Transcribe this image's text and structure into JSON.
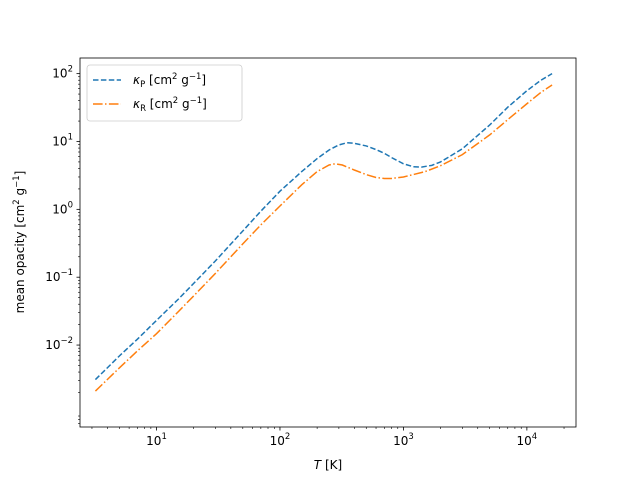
{
  "chart_data": {
    "type": "line",
    "title": "",
    "xlabel": {
      "italic": "T",
      "rest": " [K]"
    },
    "ylabel": {
      "main": "mean opacity [cm",
      "sup1": "2",
      "mid": " g",
      "sup2": "−1",
      "end": "]"
    },
    "xscale": "log",
    "yscale": "log",
    "xlim": [
      2.4,
      25000
    ],
    "ylim": [
      0.00062,
      170
    ],
    "grid": false,
    "legend_position": "top-left",
    "x_ticks": [
      {
        "value": 10,
        "base": "10",
        "exp": "1"
      },
      {
        "value": 100,
        "base": "10",
        "exp": "2"
      },
      {
        "value": 1000,
        "base": "10",
        "exp": "3"
      },
      {
        "value": 10000,
        "base": "10",
        "exp": "4"
      }
    ],
    "y_ticks": [
      {
        "value": 0.01,
        "base": "10",
        "exp": "−2"
      },
      {
        "value": 0.1,
        "base": "10",
        "exp": "−1"
      },
      {
        "value": 1,
        "base": "10",
        "exp": "0"
      },
      {
        "value": 10,
        "base": "10",
        "exp": "1"
      },
      {
        "value": 100,
        "base": "10",
        "exp": "2"
      }
    ],
    "series": [
      {
        "name": "kappa_P",
        "label_symbol": "κ",
        "label_sub": "P",
        "label_unit_a": " [cm",
        "label_unit_sup1": "2",
        "label_unit_b": " g",
        "label_unit_sup2": "−1",
        "label_unit_c": "]",
        "color": "#1f77b4",
        "style": "dashed",
        "points": [
          [
            3.2,
            0.0031
          ],
          [
            5,
            0.0069
          ],
          [
            7,
            0.0122
          ],
          [
            10,
            0.0231
          ],
          [
            15,
            0.0473
          ],
          [
            20,
            0.081
          ],
          [
            30,
            0.174
          ],
          [
            50,
            0.48
          ],
          [
            70,
            0.94
          ],
          [
            100,
            1.85
          ],
          [
            150,
            3.6
          ],
          [
            200,
            5.6
          ],
          [
            250,
            7.5
          ],
          [
            300,
            8.9
          ],
          [
            350,
            9.6
          ],
          [
            400,
            9.4
          ],
          [
            500,
            8.6
          ],
          [
            600,
            7.6
          ],
          [
            700,
            6.7
          ],
          [
            800,
            5.8
          ],
          [
            1000,
            4.7
          ],
          [
            1200,
            4.25
          ],
          [
            1400,
            4.2
          ],
          [
            1700,
            4.45
          ],
          [
            2000,
            5.0
          ],
          [
            3000,
            7.8
          ],
          [
            5000,
            17.5
          ],
          [
            7000,
            32
          ],
          [
            10000,
            56
          ],
          [
            13000,
            80
          ],
          [
            16000,
            100
          ]
        ]
      },
      {
        "name": "kappa_R",
        "label_symbol": "κ",
        "label_sub": "R",
        "label_unit_a": " [cm",
        "label_unit_sup1": "2",
        "label_unit_b": " g",
        "label_unit_sup2": "−1",
        "label_unit_c": "]",
        "color": "#ff7f0e",
        "style": "dashdot",
        "points": [
          [
            3.2,
            0.0021
          ],
          [
            5,
            0.0046
          ],
          [
            7,
            0.0082
          ],
          [
            10,
            0.0147
          ],
          [
            15,
            0.031
          ],
          [
            20,
            0.053
          ],
          [
            30,
            0.114
          ],
          [
            50,
            0.31
          ],
          [
            70,
            0.59
          ],
          [
            100,
            1.12
          ],
          [
            150,
            2.3
          ],
          [
            200,
            3.6
          ],
          [
            250,
            4.5
          ],
          [
            280,
            4.7
          ],
          [
            320,
            4.5
          ],
          [
            400,
            3.8
          ],
          [
            500,
            3.25
          ],
          [
            600,
            2.95
          ],
          [
            700,
            2.85
          ],
          [
            800,
            2.85
          ],
          [
            1000,
            3.0
          ],
          [
            1500,
            3.6
          ],
          [
            2000,
            4.4
          ],
          [
            3000,
            6.4
          ],
          [
            5000,
            12.5
          ],
          [
            7000,
            21
          ],
          [
            10000,
            36
          ],
          [
            13000,
            53
          ],
          [
            16000,
            68
          ]
        ]
      }
    ]
  }
}
